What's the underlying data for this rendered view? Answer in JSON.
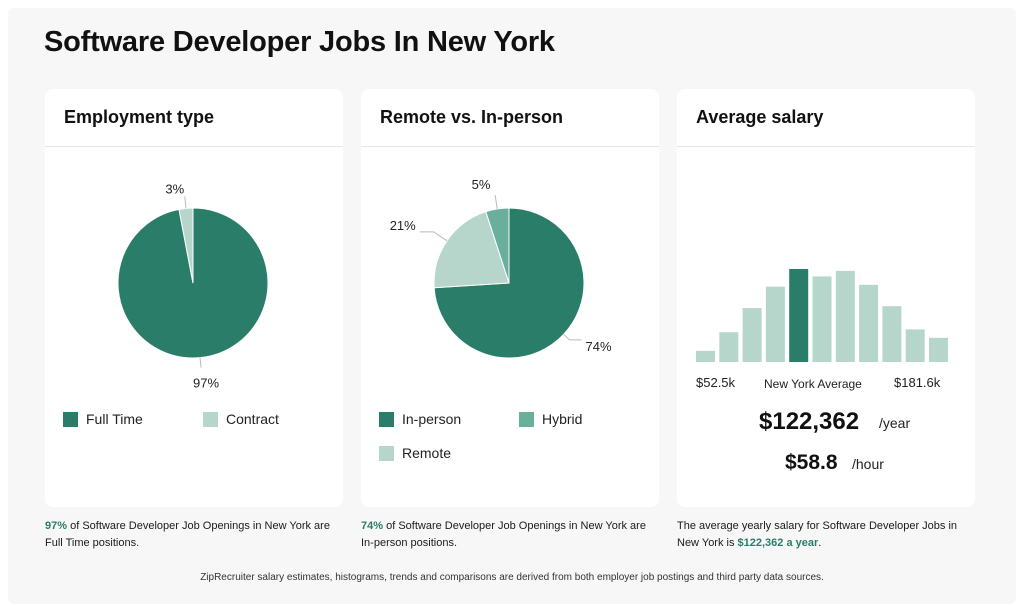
{
  "title": "Software Developer Jobs In New York",
  "colors": {
    "dark": "#2a7e69",
    "mid": "#6aae9c",
    "light": "#b6d6cc"
  },
  "cards": {
    "employment": {
      "title": "Employment type",
      "legend": [
        "Full Time",
        "Contract"
      ],
      "caption_pct": "97%",
      "caption_rest": " of Software Developer Job Openings in New York are Full Time positions."
    },
    "remote": {
      "title": "Remote vs. In-person",
      "legend": [
        "In-person",
        "Hybrid",
        "Remote"
      ],
      "caption_pct": "74%",
      "caption_rest": " of Software Developer Job Openings in New York are In-person positions."
    },
    "salary": {
      "title": "Average salary",
      "min_label": "$52.5k",
      "mid_label": "New York Average",
      "max_label": "$181.6k",
      "yearly": "$122,362",
      "yearly_unit": "/year",
      "hourly": "$58.8",
      "hourly_unit": "/hour",
      "caption_pre": "The average yearly salary for Software Developer Jobs in New York is ",
      "caption_hl": "$122,362 a year",
      "caption_post": "."
    }
  },
  "chart_data": [
    {
      "type": "pie",
      "title": "Employment type",
      "labels": [
        "Full Time",
        "Contract"
      ],
      "values": [
        97,
        3
      ],
      "value_labels": [
        "97%",
        "3%"
      ]
    },
    {
      "type": "pie",
      "title": "Remote vs. In-person",
      "labels": [
        "In-person",
        "Hybrid",
        "Remote"
      ],
      "values": [
        74,
        5,
        21
      ],
      "value_labels": [
        "74%",
        "5%",
        "21%"
      ]
    },
    {
      "type": "bar",
      "title": "Average salary",
      "values": [
        0.12,
        0.32,
        0.58,
        0.81,
        1.0,
        0.92,
        0.98,
        0.83,
        0.6,
        0.35,
        0.26
      ],
      "highlight_index": 4,
      "ylim": [
        0,
        1
      ]
    }
  ],
  "footer": "ZipRecruiter salary estimates, histograms, trends and comparisons are derived from both employer job postings and third party data sources."
}
